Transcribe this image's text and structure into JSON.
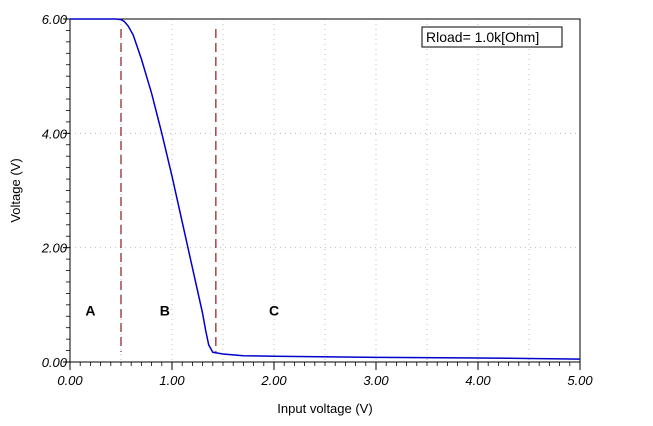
{
  "chart_data": {
    "type": "line",
    "title": "",
    "xlabel": "Input voltage (V)",
    "ylabel": "Voltage (V)",
    "xlim": [
      0,
      5
    ],
    "ylim": [
      0,
      6
    ],
    "x_ticks": [
      "0.00",
      "1.00",
      "2.00",
      "3.00",
      "4.00",
      "5.00"
    ],
    "y_ticks": [
      "0.00",
      "2.00",
      "4.00",
      "6.00"
    ],
    "grid": true,
    "annotation": "Rload=  1.0k[Ohm]",
    "region_labels": [
      {
        "text": "A",
        "x": 0.2,
        "y": 0.9
      },
      {
        "text": "B",
        "x": 0.93,
        "y": 0.9
      },
      {
        "text": "C",
        "x": 2.0,
        "y": 0.9
      }
    ],
    "dashed_lines_x": [
      0.5,
      1.43
    ],
    "series": [
      {
        "color": "#0000cc",
        "x": [
          0.0,
          0.3,
          0.45,
          0.5,
          0.53,
          0.57,
          0.62,
          0.7,
          0.8,
          0.9,
          1.0,
          1.1,
          1.2,
          1.3,
          1.33,
          1.36,
          1.4,
          1.5,
          1.7,
          2.0,
          3.0,
          4.0,
          4.6,
          5.0
        ],
        "y": [
          6.0,
          6.0,
          6.0,
          5.99,
          5.96,
          5.88,
          5.72,
          5.3,
          4.7,
          4.0,
          3.25,
          2.45,
          1.65,
          0.85,
          0.55,
          0.3,
          0.17,
          0.14,
          0.11,
          0.1,
          0.08,
          0.07,
          0.06,
          0.05
        ]
      }
    ]
  }
}
